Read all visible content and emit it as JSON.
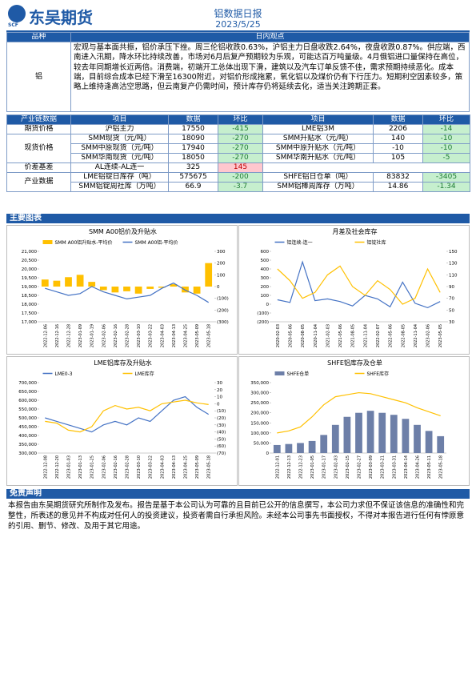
{
  "header": {
    "logo": "东吴期货",
    "logo_mark": "SCF",
    "title": "铝数据日报",
    "date": "2023/5/25"
  },
  "view": {
    "headers": [
      "品种",
      "日内观点"
    ],
    "variety": "铝",
    "text": "宏观与基本面共振，铝价承压下挫。周三伦铝收跌0.63%，沪铝主力日盘收跌2.64%，夜盘收跌0.87%。供应端，西南进入汛期，降水环比持续改善，市场对6月后复产预期较为乐观，可能达百万吨量级。4月俄铝进口量保持在高位，较去年同期增长近两倍。消费端，初端开工总体出现下滑，建筑以及汽车订单反馈不佳，需求预期持续恶化。成本端，目前综合成本已经下滑至16300附近，对铝价形成拖累，氧化铝以及煤价仍有下行压力。短期利空因素较多，策略上维持逢高沽空思路，但云南复产仍需时间，预计库存仍将延续去化，适当关注跨期正套。"
  },
  "data_table": {
    "headers": [
      "产业链数据",
      "项目",
      "数据",
      "环比",
      "项目",
      "数据",
      "环比"
    ],
    "negative_fill": "#c6efce",
    "negative_text": "#1e7b34",
    "positive_fill": "#ffc7ce",
    "positive_text": "#c00000",
    "rows": [
      {
        "group": "期货价格",
        "cells": [
          "沪铝主力",
          17550,
          -415,
          "LME铝3M",
          2206,
          -14
        ]
      },
      {
        "group": "现货价格",
        "cells": [
          "SMM现货（元/吨）",
          18090,
          -270,
          "SMM升贴水（元/吨）",
          140,
          -10
        ]
      },
      {
        "cells": [
          "SMM中原现货（元/吨）",
          17940,
          -270,
          "SMM中原升贴水（元/吨）",
          -10,
          -10
        ]
      },
      {
        "cells": [
          "SMM华南现货（元/吨）",
          18050,
          -270,
          "SMM华南升贴水（元/吨）",
          105,
          -5
        ]
      },
      {
        "group": "价差基差",
        "cells": [
          "AL连续-AL连一",
          325,
          145
        ]
      },
      {
        "group": "产业数据",
        "cells": [
          "LME铝锭日库存（吨）",
          575675,
          -200,
          "SHFE铝日仓单（吨）",
          83832,
          -3405
        ]
      },
      {
        "cells": [
          "SMM铝锭周社库（万吨）",
          66.9,
          -3.7,
          "SMM铝棒周库存（万吨）",
          14.86,
          -1.34
        ]
      }
    ]
  },
  "section": "主要图表",
  "charts": [
    {
      "type": "bar-line",
      "title": "SMM A00铝价及升贴水",
      "categories": [
        "2022-12-06",
        "2022-12-16",
        "2022-12-28",
        "2023-01-09",
        "2023-01-19",
        "2023-02-06",
        "2023-02-16",
        "2023-02-28",
        "2023-03-10",
        "2023-03-22",
        "2023-04-03",
        "2023-04-13",
        "2023-04-25",
        "2023-05-09",
        "2023-05-18"
      ],
      "series": [
        {
          "name": "SMM A00铝升贴水-平均价",
          "kind": "bar",
          "axis": "y2",
          "color": "#ffc000",
          "values": [
            60,
            50,
            80,
            100,
            40,
            -30,
            -50,
            -40,
            -60,
            -20,
            -10,
            20,
            -50,
            -60,
            200
          ]
        },
        {
          "name": "SMM A00铝-平均价",
          "kind": "line",
          "axis": "y",
          "color": "#4472c4",
          "values": [
            18900,
            18700,
            18500,
            18600,
            19000,
            18700,
            18500,
            18300,
            18400,
            18500,
            18900,
            19200,
            18800,
            18500,
            18100
          ]
        }
      ],
      "ylim": [
        17000,
        21000
      ],
      "yticks": [
        {
          "value": 17000,
          "label": "17,000"
        },
        {
          "value": 17500,
          "label": "17,500"
        },
        {
          "value": 18000,
          "label": "18,000"
        },
        {
          "value": 18500,
          "label": "18,500"
        },
        {
          "value": 19000,
          "label": "19,000"
        },
        {
          "value": 19500,
          "label": "19,500"
        },
        {
          "value": 20000,
          "label": "20,000"
        },
        {
          "value": 20500,
          "label": "20,500"
        },
        {
          "value": 21000,
          "label": "21,000"
        }
      ],
      "y2lim": [
        -300,
        300
      ],
      "y2ticks": [
        {
          "value": -300,
          "label": "(300)"
        },
        {
          "value": -200,
          "label": "(200)"
        },
        {
          "value": -100,
          "label": "(100)"
        },
        0,
        100,
        200,
        300
      ]
    },
    {
      "type": "bar-line",
      "title": "月差及社会库存",
      "categories": [
        "2020-02-03",
        "2020-05-06",
        "2020-08-05",
        "2020-11-04",
        "2021-02-03",
        "2021-05-06",
        "2021-08-05",
        "2021-11-04",
        "2022-02-07",
        "2022-05-06",
        "2022-08-05",
        "2022-11-04",
        "2023-02-06",
        "2023-05-05"
      ],
      "series": [
        {
          "name": "铝连续-连一",
          "kind": "line",
          "axis": "y",
          "color": "#4472c4",
          "values": [
            50,
            20,
            480,
            40,
            60,
            30,
            -20,
            100,
            60,
            -30,
            250,
            10,
            -40,
            30
          ]
        },
        {
          "name": "铝锭社库",
          "kind": "line",
          "axis": "y2",
          "color": "#ffc000",
          "values": [
            120,
            100,
            70,
            80,
            110,
            125,
            90,
            75,
            100,
            85,
            60,
            70,
            120,
            80
          ]
        }
      ],
      "ylim": [
        -200,
        600
      ],
      "yticks": [
        {
          "value": -200,
          "label": "(200)"
        },
        {
          "value": -100,
          "label": "(100)"
        },
        0,
        100,
        200,
        300,
        400,
        500,
        600
      ],
      "y2lim": [
        30,
        150
      ],
      "y2ticks": [
        30,
        50,
        70,
        90,
        110,
        130,
        150
      ]
    },
    {
      "type": "bar-line",
      "title": "LME铝库存及升贴水",
      "categories": [
        "2022-12-08",
        "2022-12-20",
        "2023-01-03",
        "2023-01-13",
        "2023-01-25",
        "2023-02-06",
        "2023-02-16",
        "2023-02-28",
        "2023-03-10",
        "2023-03-22",
        "2023-04-03",
        "2023-04-13",
        "2023-04-25",
        "2023-05-09",
        "2023-05-18"
      ],
      "series": [
        {
          "name": "LME0-3",
          "kind": "line",
          "axis": "y2",
          "color": "#4472c4",
          "values": [
            -20,
            -25,
            -30,
            -35,
            -40,
            -30,
            -25,
            -30,
            -20,
            -25,
            -10,
            5,
            10,
            -5,
            -15
          ]
        },
        {
          "name": "LME库存",
          "kind": "line",
          "axis": "y",
          "color": "#ffc000",
          "values": [
            480000,
            470000,
            430000,
            420000,
            450000,
            540000,
            570000,
            550000,
            560000,
            540000,
            580000,
            590000,
            600000,
            585000,
            575675
          ]
        }
      ],
      "ylim": [
        300000,
        700000
      ],
      "yticks": [
        {
          "value": 300000,
          "label": "300,000"
        },
        {
          "value": 350000,
          "label": "350,000"
        },
        {
          "value": 400000,
          "label": "400,000"
        },
        {
          "value": 450000,
          "label": "450,000"
        },
        {
          "value": 500000,
          "label": "500,000"
        },
        {
          "value": 550000,
          "label": "550,000"
        },
        {
          "value": 600000,
          "label": "600,000"
        },
        {
          "value": 650000,
          "label": "650,000"
        },
        {
          "value": 700000,
          "label": "700,000"
        }
      ],
      "y2lim": [
        -70,
        30
      ],
      "y2ticks": [
        {
          "value": -70,
          "label": "(70)"
        },
        {
          "value": -60,
          "label": "(60)"
        },
        {
          "value": -50,
          "label": "(50)"
        },
        {
          "value": -40,
          "label": "(40)"
        },
        {
          "value": -30,
          "label": "(30)"
        },
        {
          "value": -20,
          "label": "(20)"
        },
        {
          "value": -10,
          "label": "(10)"
        },
        0,
        10,
        20,
        30
      ]
    },
    {
      "type": "bar-line",
      "title": "SHFE铝库存及仓单",
      "categories": [
        "2022-12-01",
        "2022-12-13",
        "2022-12-23",
        "2023-01-05",
        "2023-01-17",
        "2023-02-03",
        "2023-02-15",
        "2023-02-27",
        "2023-03-09",
        "2023-03-21",
        "2023-03-31",
        "2023-04-14",
        "2023-04-26",
        "2023-05-11",
        "2023-05-18"
      ],
      "series": [
        {
          "name": "SHFE仓单",
          "kind": "bar",
          "axis": "y",
          "color": "#6d7fa8",
          "values": [
            40000,
            45000,
            50000,
            60000,
            90000,
            140000,
            180000,
            200000,
            210000,
            200000,
            190000,
            170000,
            140000,
            110000,
            83832
          ]
        },
        {
          "name": "SHFE库存",
          "kind": "line",
          "axis": "y",
          "color": "#ffc000",
          "values": [
            100000,
            110000,
            130000,
            180000,
            240000,
            280000,
            290000,
            300000,
            295000,
            280000,
            265000,
            250000,
            225000,
            205000,
            185000
          ]
        }
      ],
      "ylim": [
        0,
        350000
      ],
      "yticks": [
        0,
        {
          "value": 50000,
          "label": "50,000"
        },
        {
          "value": 100000,
          "label": "100,000"
        },
        {
          "value": 150000,
          "label": "150,000"
        },
        {
          "value": 200000,
          "label": "200,000"
        },
        {
          "value": 250000,
          "label": "250,000"
        },
        {
          "value": 300000,
          "label": "300,000"
        },
        {
          "value": 350000,
          "label": "350,000"
        }
      ]
    }
  ],
  "disclaimer": {
    "title": "免责声明",
    "text": "本报告由东吴期货研究所制作及发布。报告是基于本公司认为可靠的且目前已公开的信息撰写，本公司力求但不保证该信息的准确性和完整性，所表述的意见并不构成对任何人的投资建议，投资者需自行承担风险。未经本公司事先书面授权，不得对本报告进行任何有悖原意的引用、删节、修改、及用于其它用途。"
  }
}
